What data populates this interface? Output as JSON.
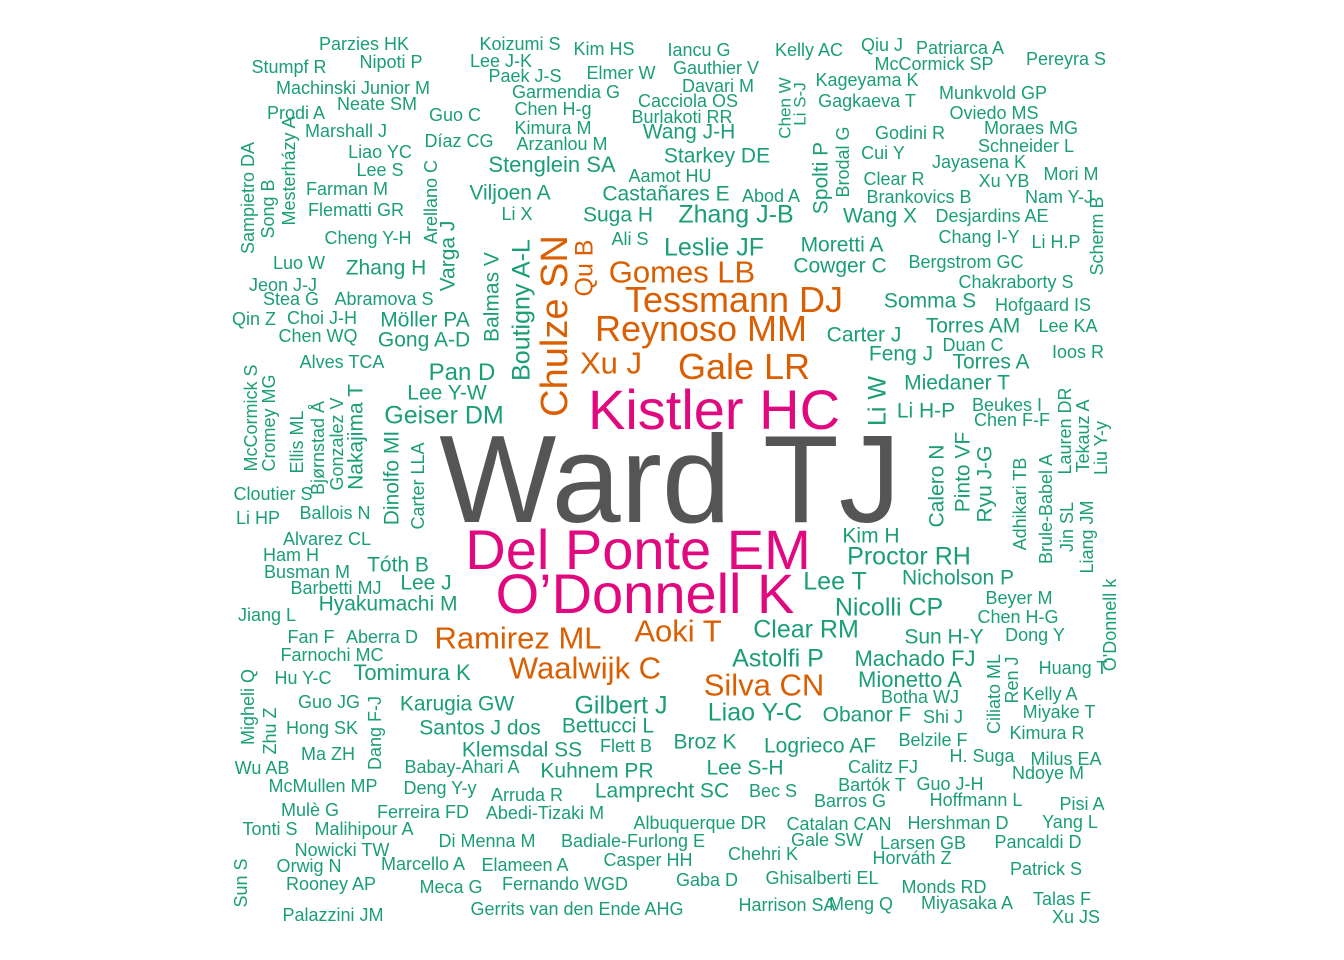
{
  "colors": {
    "background": "#ffffff",
    "tier_0_largest": "#555555",
    "tier_1_magenta": "#e0097f",
    "tier_2_orange": "#d95f02",
    "tier_3_teal": "#1b9e77"
  },
  "words": [
    {
      "text": "Ward TJ",
      "color": "#555555"
    },
    {
      "text": "Kistler HC",
      "color": "#e0097f"
    },
    {
      "text": "Del Ponte EM",
      "color": "#e0097f"
    },
    {
      "text": "O’Donnell K",
      "color": "#e0097f"
    },
    {
      "text": "Tessmann DJ",
      "color": "#d95f02"
    },
    {
      "text": "Reynoso MM",
      "color": "#d95f02"
    },
    {
      "text": "Gale LR",
      "color": "#d95f02"
    },
    {
      "text": "Gomes LB",
      "color": "#d95f02"
    },
    {
      "text": "Xu J",
      "color": "#d95f02"
    },
    {
      "text": "Chulze SN",
      "color": "#d95f02"
    },
    {
      "text": "Ramirez ML",
      "color": "#d95f02"
    },
    {
      "text": "Aoki T",
      "color": "#d95f02"
    },
    {
      "text": "Waalwijk C",
      "color": "#d95f02"
    },
    {
      "text": "Silva CN",
      "color": "#d95f02"
    },
    {
      "text": "Parzies HK",
      "color": "#1b9e77"
    },
    {
      "text": "Koizumi S",
      "color": "#1b9e77"
    },
    {
      "text": "Kim HS",
      "color": "#1b9e77"
    },
    {
      "text": "Iancu G",
      "color": "#1b9e77"
    },
    {
      "text": "Kelly AC",
      "color": "#1b9e77"
    },
    {
      "text": "Qiu J",
      "color": "#1b9e77"
    },
    {
      "text": "Patriarca A",
      "color": "#1b9e77"
    },
    {
      "text": "Stumpf R",
      "color": "#1b9e77"
    },
    {
      "text": "Nipoti P",
      "color": "#1b9e77"
    },
    {
      "text": "Lee J-K",
      "color": "#1b9e77"
    },
    {
      "text": "Gauthier V",
      "color": "#1b9e77"
    },
    {
      "text": "McCormick SP",
      "color": "#1b9e77"
    },
    {
      "text": "Pereyra S",
      "color": "#1b9e77"
    },
    {
      "text": "Paek J-S",
      "color": "#1b9e77"
    },
    {
      "text": "Elmer W",
      "color": "#1b9e77"
    },
    {
      "text": "Kageyama K",
      "color": "#1b9e77"
    },
    {
      "text": "Machinski Junior M",
      "color": "#1b9e77"
    },
    {
      "text": "Garmendia G",
      "color": "#1b9e77"
    },
    {
      "text": "Davari M",
      "color": "#1b9e77"
    },
    {
      "text": "Munkvold GP",
      "color": "#1b9e77"
    },
    {
      "text": "Neate SM",
      "color": "#1b9e77"
    },
    {
      "text": "Cacciola OS",
      "color": "#1b9e77"
    },
    {
      "text": "Gagkaeva T",
      "color": "#1b9e77"
    },
    {
      "text": "Prodi A",
      "color": "#1b9e77"
    },
    {
      "text": "Guo C",
      "color": "#1b9e77"
    },
    {
      "text": "Chen H-g",
      "color": "#1b9e77"
    },
    {
      "text": "Burlakoti RR",
      "color": "#1b9e77"
    },
    {
      "text": "Oviedo MS",
      "color": "#1b9e77"
    },
    {
      "text": "Marshall J",
      "color": "#1b9e77"
    },
    {
      "text": "Kimura M",
      "color": "#1b9e77"
    },
    {
      "text": "Wang J-H",
      "color": "#1b9e77"
    },
    {
      "text": "Godini R",
      "color": "#1b9e77"
    },
    {
      "text": "Moraes MG",
      "color": "#1b9e77"
    },
    {
      "text": "Díaz CG",
      "color": "#1b9e77"
    },
    {
      "text": "Arzanlou M",
      "color": "#1b9e77"
    },
    {
      "text": "Schneider L",
      "color": "#1b9e77"
    },
    {
      "text": "Liao YC",
      "color": "#1b9e77"
    },
    {
      "text": "Starkey DE",
      "color": "#1b9e77"
    },
    {
      "text": "Cui Y",
      "color": "#1b9e77"
    },
    {
      "text": "Jayasena K",
      "color": "#1b9e77"
    },
    {
      "text": "Lee S",
      "color": "#1b9e77"
    },
    {
      "text": "Stenglein SA",
      "color": "#1b9e77"
    },
    {
      "text": "Mori M",
      "color": "#1b9e77"
    },
    {
      "text": "Aamot HU",
      "color": "#1b9e77"
    },
    {
      "text": "Clear R",
      "color": "#1b9e77"
    },
    {
      "text": "Xu YB",
      "color": "#1b9e77"
    },
    {
      "text": "Farman M",
      "color": "#1b9e77"
    },
    {
      "text": "Viljoen A",
      "color": "#1b9e77"
    },
    {
      "text": "Castañares E",
      "color": "#1b9e77"
    },
    {
      "text": "Abod A",
      "color": "#1b9e77"
    },
    {
      "text": "Brankovics B",
      "color": "#1b9e77"
    },
    {
      "text": "Nam Y-J",
      "color": "#1b9e77"
    },
    {
      "text": "Flematti GR",
      "color": "#1b9e77"
    },
    {
      "text": "Li X",
      "color": "#1b9e77"
    },
    {
      "text": "Suga H",
      "color": "#1b9e77"
    },
    {
      "text": "Zhang J-B",
      "color": "#1b9e77"
    },
    {
      "text": "Wang X",
      "color": "#1b9e77"
    },
    {
      "text": "Desjardins AE",
      "color": "#1b9e77"
    },
    {
      "text": "Cheng Y-H",
      "color": "#1b9e77"
    },
    {
      "text": "Ali S",
      "color": "#1b9e77"
    },
    {
      "text": "Chang I-Y",
      "color": "#1b9e77"
    },
    {
      "text": "Li H.P",
      "color": "#1b9e77"
    },
    {
      "text": "Leslie JF",
      "color": "#1b9e77"
    },
    {
      "text": "Moretti A",
      "color": "#1b9e77"
    },
    {
      "text": "Luo W",
      "color": "#1b9e77"
    },
    {
      "text": "Zhang H",
      "color": "#1b9e77"
    },
    {
      "text": "Cowger C",
      "color": "#1b9e77"
    },
    {
      "text": "Bergstrom GC",
      "color": "#1b9e77"
    },
    {
      "text": "Jeon J-J",
      "color": "#1b9e77"
    },
    {
      "text": "Chakraborty S",
      "color": "#1b9e77"
    },
    {
      "text": "Stea G",
      "color": "#1b9e77"
    },
    {
      "text": "Abramova S",
      "color": "#1b9e77"
    },
    {
      "text": "Somma S",
      "color": "#1b9e77"
    },
    {
      "text": "Hofgaard IS",
      "color": "#1b9e77"
    },
    {
      "text": "Qin Z",
      "color": "#1b9e77"
    },
    {
      "text": "Choi J-H",
      "color": "#1b9e77"
    },
    {
      "text": "Möller PA",
      "color": "#1b9e77"
    },
    {
      "text": "Torres AM",
      "color": "#1b9e77"
    },
    {
      "text": "Lee KA",
      "color": "#1b9e77"
    },
    {
      "text": "Chen WQ",
      "color": "#1b9e77"
    },
    {
      "text": "Gong A-D",
      "color": "#1b9e77"
    },
    {
      "text": "Carter J",
      "color": "#1b9e77"
    },
    {
      "text": "Duan C",
      "color": "#1b9e77"
    },
    {
      "text": "Feng J",
      "color": "#1b9e77"
    },
    {
      "text": "Ioos R",
      "color": "#1b9e77"
    },
    {
      "text": "Alves TCA",
      "color": "#1b9e77"
    },
    {
      "text": "Torres A",
      "color": "#1b9e77"
    },
    {
      "text": "Pan D",
      "color": "#1b9e77"
    },
    {
      "text": "Miedaner T",
      "color": "#1b9e77"
    },
    {
      "text": "Lee Y-W",
      "color": "#1b9e77"
    },
    {
      "text": "Beukes I",
      "color": "#1b9e77"
    },
    {
      "text": "Geiser DM",
      "color": "#1b9e77"
    },
    {
      "text": "Li H-P",
      "color": "#1b9e77"
    },
    {
      "text": "Chen F-F",
      "color": "#1b9e77"
    },
    {
      "text": "Cloutier S",
      "color": "#1b9e77"
    },
    {
      "text": "Li HP",
      "color": "#1b9e77"
    },
    {
      "text": "Ballois N",
      "color": "#1b9e77"
    },
    {
      "text": "Alvarez CL",
      "color": "#1b9e77"
    },
    {
      "text": "Kim H",
      "color": "#1b9e77"
    },
    {
      "text": "Ham H",
      "color": "#1b9e77"
    },
    {
      "text": "Proctor RH",
      "color": "#1b9e77"
    },
    {
      "text": "Busman M",
      "color": "#1b9e77"
    },
    {
      "text": "Tóth B",
      "color": "#1b9e77"
    },
    {
      "text": "Barbetti MJ",
      "color": "#1b9e77"
    },
    {
      "text": "Lee J",
      "color": "#1b9e77"
    },
    {
      "text": "Lee T",
      "color": "#1b9e77"
    },
    {
      "text": "Nicholson P",
      "color": "#1b9e77"
    },
    {
      "text": "Beyer M",
      "color": "#1b9e77"
    },
    {
      "text": "Hyakumachi M",
      "color": "#1b9e77"
    },
    {
      "text": "Nicolli CP",
      "color": "#1b9e77"
    },
    {
      "text": "Jiang L",
      "color": "#1b9e77"
    },
    {
      "text": "Chen H-G",
      "color": "#1b9e77"
    },
    {
      "text": "Fan F",
      "color": "#1b9e77"
    },
    {
      "text": "Aberra D",
      "color": "#1b9e77"
    },
    {
      "text": "Clear RM",
      "color": "#1b9e77"
    },
    {
      "text": "Sun H-Y",
      "color": "#1b9e77"
    },
    {
      "text": "Dong Y",
      "color": "#1b9e77"
    },
    {
      "text": "Farnochi MC",
      "color": "#1b9e77"
    },
    {
      "text": "Astolfi P",
      "color": "#1b9e77"
    },
    {
      "text": "Machado FJ",
      "color": "#1b9e77"
    },
    {
      "text": "Huang T",
      "color": "#1b9e77"
    },
    {
      "text": "Hu Y-C",
      "color": "#1b9e77"
    },
    {
      "text": "Tomimura K",
      "color": "#1b9e77"
    },
    {
      "text": "Mionetto A",
      "color": "#1b9e77"
    },
    {
      "text": "Botha WJ",
      "color": "#1b9e77"
    },
    {
      "text": "Kelly A",
      "color": "#1b9e77"
    },
    {
      "text": "Guo JG",
      "color": "#1b9e77"
    },
    {
      "text": "Karugia GW",
      "color": "#1b9e77"
    },
    {
      "text": "Gilbert J",
      "color": "#1b9e77"
    },
    {
      "text": "Liao Y-C",
      "color": "#1b9e77"
    },
    {
      "text": "Obanor F",
      "color": "#1b9e77"
    },
    {
      "text": "Shi J",
      "color": "#1b9e77"
    },
    {
      "text": "Miyake T",
      "color": "#1b9e77"
    },
    {
      "text": "Hong SK",
      "color": "#1b9e77"
    },
    {
      "text": "Santos J dos",
      "color": "#1b9e77"
    },
    {
      "text": "Bettucci L",
      "color": "#1b9e77"
    },
    {
      "text": "Kimura R",
      "color": "#1b9e77"
    },
    {
      "text": "Belzile F",
      "color": "#1b9e77"
    },
    {
      "text": "Broz K",
      "color": "#1b9e77"
    },
    {
      "text": "Logrieco AF",
      "color": "#1b9e77"
    },
    {
      "text": "Ma ZH",
      "color": "#1b9e77"
    },
    {
      "text": "Klemsdal SS",
      "color": "#1b9e77"
    },
    {
      "text": "Flett B",
      "color": "#1b9e77"
    },
    {
      "text": "H. Suga",
      "color": "#1b9e77"
    },
    {
      "text": "Milus EA",
      "color": "#1b9e77"
    },
    {
      "text": "Wu AB",
      "color": "#1b9e77"
    },
    {
      "text": "Babay-Ahari A",
      "color": "#1b9e77"
    },
    {
      "text": "Kuhnem PR",
      "color": "#1b9e77"
    },
    {
      "text": "Lee S-H",
      "color": "#1b9e77"
    },
    {
      "text": "Calitz FJ",
      "color": "#1b9e77"
    },
    {
      "text": "Ndoye M",
      "color": "#1b9e77"
    },
    {
      "text": "McMullen MP",
      "color": "#1b9e77"
    },
    {
      "text": "Deng Y-y",
      "color": "#1b9e77"
    },
    {
      "text": "Lamprecht SC",
      "color": "#1b9e77"
    },
    {
      "text": "Bartók T",
      "color": "#1b9e77"
    },
    {
      "text": "Guo J-H",
      "color": "#1b9e77"
    },
    {
      "text": "Arruda R",
      "color": "#1b9e77"
    },
    {
      "text": "Bec S",
      "color": "#1b9e77"
    },
    {
      "text": "Barros G",
      "color": "#1b9e77"
    },
    {
      "text": "Hoffmann L",
      "color": "#1b9e77"
    },
    {
      "text": "Mulè G",
      "color": "#1b9e77"
    },
    {
      "text": "Ferreira FD",
      "color": "#1b9e77"
    },
    {
      "text": "Abedi-Tizaki M",
      "color": "#1b9e77"
    },
    {
      "text": "Pisi A",
      "color": "#1b9e77"
    },
    {
      "text": "Tonti S",
      "color": "#1b9e77"
    },
    {
      "text": "Malihipour A",
      "color": "#1b9e77"
    },
    {
      "text": "Albuquerque DR",
      "color": "#1b9e77"
    },
    {
      "text": "Catalan CAN",
      "color": "#1b9e77"
    },
    {
      "text": "Hershman D",
      "color": "#1b9e77"
    },
    {
      "text": "Yang L",
      "color": "#1b9e77"
    },
    {
      "text": "Nowicki TW",
      "color": "#1b9e77"
    },
    {
      "text": "Di Menna M",
      "color": "#1b9e77"
    },
    {
      "text": "Badiale-Furlong E",
      "color": "#1b9e77"
    },
    {
      "text": "Gale SW",
      "color": "#1b9e77"
    },
    {
      "text": "Larsen GB",
      "color": "#1b9e77"
    },
    {
      "text": "Pancaldi D",
      "color": "#1b9e77"
    },
    {
      "text": "Orwig N",
      "color": "#1b9e77"
    },
    {
      "text": "Marcello A",
      "color": "#1b9e77"
    },
    {
      "text": "Elameen A",
      "color": "#1b9e77"
    },
    {
      "text": "Casper HH",
      "color": "#1b9e77"
    },
    {
      "text": "Chehri K",
      "color": "#1b9e77"
    },
    {
      "text": "Horváth Z",
      "color": "#1b9e77"
    },
    {
      "text": "Patrick S",
      "color": "#1b9e77"
    },
    {
      "text": "Rooney AP",
      "color": "#1b9e77"
    },
    {
      "text": "Meca G",
      "color": "#1b9e77"
    },
    {
      "text": "Fernando WGD",
      "color": "#1b9e77"
    },
    {
      "text": "Gaba D",
      "color": "#1b9e77"
    },
    {
      "text": "Ghisalberti EL",
      "color": "#1b9e77"
    },
    {
      "text": "Monds RD",
      "color": "#1b9e77"
    },
    {
      "text": "Talas F",
      "color": "#1b9e77"
    },
    {
      "text": "Gerrits van den Ende AHG",
      "color": "#1b9e77"
    },
    {
      "text": "Harrison SA",
      "color": "#1b9e77"
    },
    {
      "text": "Meng Q",
      "color": "#1b9e77"
    },
    {
      "text": "Miyasaka A",
      "color": "#1b9e77"
    },
    {
      "text": "Xu JS",
      "color": "#1b9e77"
    },
    {
      "text": "Palazzini JM",
      "color": "#1b9e77"
    },
    {
      "text": "Sampietro DA",
      "color": "#1b9e77"
    },
    {
      "text": "Song B",
      "color": "#1b9e77"
    },
    {
      "text": "Mesterházy A",
      "color": "#1b9e77"
    },
    {
      "text": "Arellano C",
      "color": "#1b9e77"
    },
    {
      "text": "Varga J",
      "color": "#1b9e77"
    },
    {
      "text": "Balmas V",
      "color": "#1b9e77"
    },
    {
      "text": "Boutigny A-L",
      "color": "#1b9e77"
    },
    {
      "text": "Qu B",
      "color": "#d95f02"
    },
    {
      "text": "Chen W",
      "color": "#1b9e77"
    },
    {
      "text": "Li S-J",
      "color": "#1b9e77"
    },
    {
      "text": "Spolti P",
      "color": "#1b9e77"
    },
    {
      "text": "Brodal G",
      "color": "#1b9e77"
    },
    {
      "text": "Scherm B",
      "color": "#1b9e77"
    },
    {
      "text": "McCormick S",
      "color": "#1b9e77"
    },
    {
      "text": "Cromey MG",
      "color": "#1b9e77"
    },
    {
      "text": "Ellis ML",
      "color": "#1b9e77"
    },
    {
      "text": "Bjørnstad Å",
      "color": "#1b9e77"
    },
    {
      "text": "Gonzalez V",
      "color": "#1b9e77"
    },
    {
      "text": "Nakajima T",
      "color": "#1b9e77"
    },
    {
      "text": "Dinolfo MI",
      "color": "#1b9e77"
    },
    {
      "text": "Carter LLA",
      "color": "#1b9e77"
    },
    {
      "text": "Li W",
      "color": "#1b9e77"
    },
    {
      "text": "Calero N",
      "color": "#1b9e77"
    },
    {
      "text": "Pinto VF",
      "color": "#1b9e77"
    },
    {
      "text": "Ryu J-G",
      "color": "#1b9e77"
    },
    {
      "text": "Adhikari TB",
      "color": "#1b9e77"
    },
    {
      "text": "Brule-Babel A",
      "color": "#1b9e77"
    },
    {
      "text": "Lauren DR",
      "color": "#1b9e77"
    },
    {
      "text": "Tekauz A",
      "color": "#1b9e77"
    },
    {
      "text": "Liu Y-y",
      "color": "#1b9e77"
    },
    {
      "text": "Jin SL",
      "color": "#1b9e77"
    },
    {
      "text": "Liang JM",
      "color": "#1b9e77"
    },
    {
      "text": "O'Donnell k",
      "color": "#1b9e77"
    },
    {
      "text": "Migheli Q",
      "color": "#1b9e77"
    },
    {
      "text": "Zhu Z",
      "color": "#1b9e77"
    },
    {
      "text": "Dang F-J",
      "color": "#1b9e77"
    },
    {
      "text": "Ciliato ML",
      "color": "#1b9e77"
    },
    {
      "text": "Ren J",
      "color": "#1b9e77"
    },
    {
      "text": "Sun S",
      "color": "#1b9e77"
    }
  ]
}
